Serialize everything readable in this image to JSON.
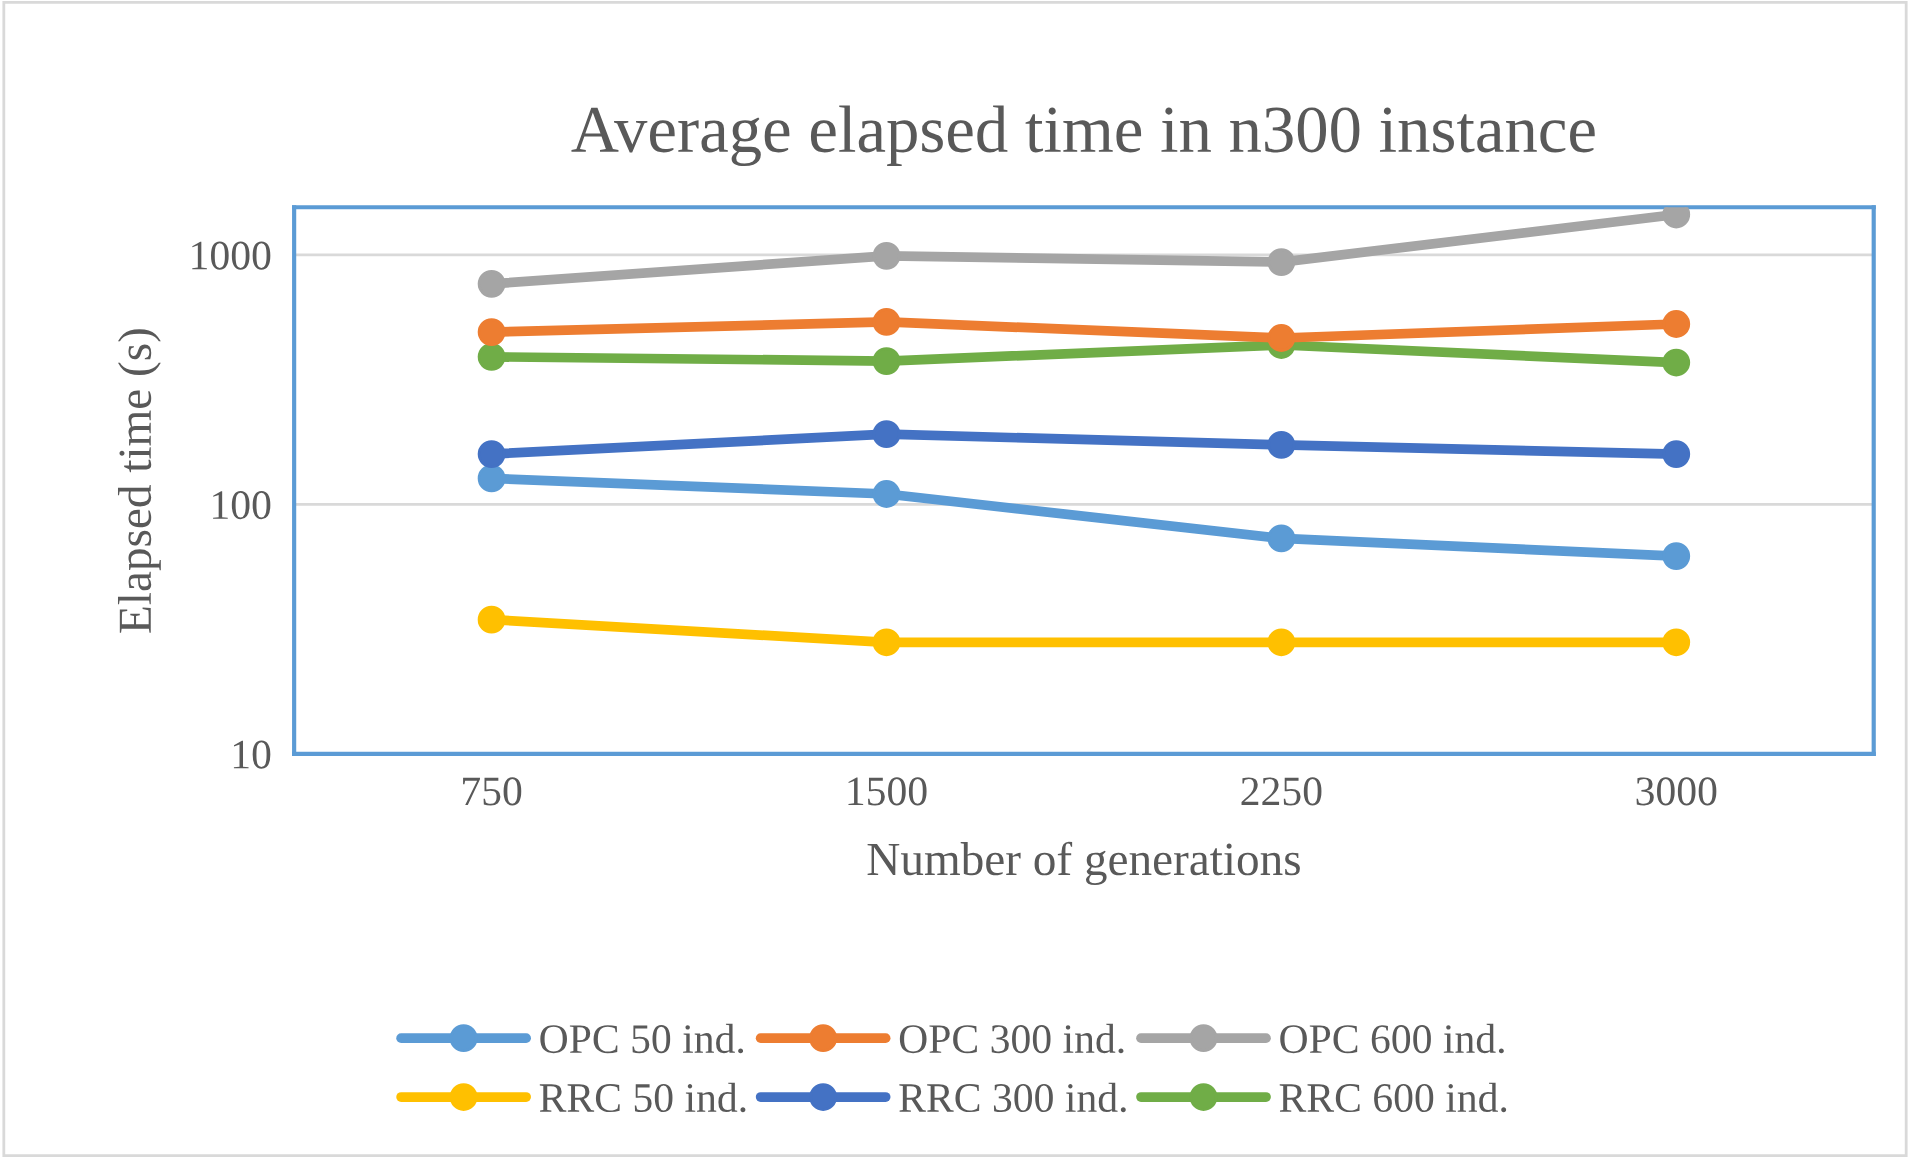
{
  "chart_data": {
    "type": "line",
    "title": "Average elapsed time in n300 instance",
    "xlabel": "Number of generations",
    "ylabel": "Elapsed time (s)",
    "categories": [
      "750",
      "1500",
      "2250",
      "3000"
    ],
    "log": "y",
    "ylim": [
      10,
      1550
    ],
    "yticks": [
      10,
      100,
      1000
    ],
    "grid": "y",
    "legend": "bottom",
    "marker": "circle",
    "line_style": "solid",
    "series": [
      {
        "name": "OPC 50 ind.",
        "color": "#5b9bd5",
        "values": [
          127,
          110,
          73,
          62
        ]
      },
      {
        "name": "OPC 300 ind.",
        "color": "#ed7d31",
        "values": [
          490,
          538,
          464,
          528
        ]
      },
      {
        "name": "OPC 600 ind.",
        "color": "#a5a5a5",
        "values": [
          765,
          990,
          935,
          1450
        ]
      },
      {
        "name": "RRC 50 ind.",
        "color": "#ffc000",
        "values": [
          34.5,
          28,
          28,
          28
        ]
      },
      {
        "name": "RRC 300 ind.",
        "color": "#4472c4",
        "values": [
          159,
          191,
          173,
          159
        ]
      },
      {
        "name": "RRC 600 ind.",
        "color": "#70ad47",
        "values": [
          390,
          375,
          435,
          370
        ]
      }
    ]
  }
}
